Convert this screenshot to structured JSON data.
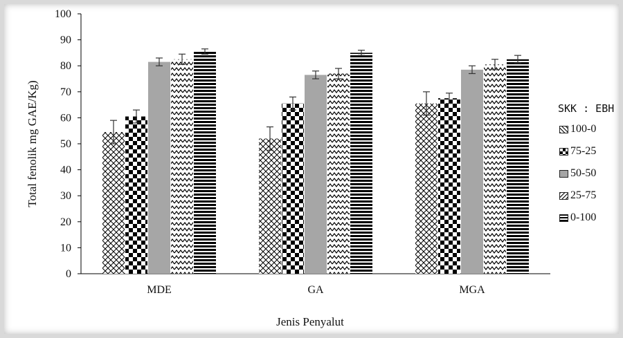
{
  "chart_data": {
    "type": "bar",
    "xlabel": "Jenis Penyalut",
    "ylabel": "Total fenolik mg GAE/Kg)",
    "ylim": [
      0,
      100
    ],
    "yticks": [
      0,
      10,
      20,
      30,
      40,
      50,
      60,
      70,
      80,
      90,
      100
    ],
    "categories": [
      "MDE",
      "GA",
      "MGA"
    ],
    "legend_title": "SKK : EBH",
    "legend_position": "right",
    "grid": false,
    "series": [
      {
        "name": "100-0",
        "pattern": "crosshatch",
        "values": [
          54.5,
          52.0,
          65.5
        ],
        "errors": [
          4.5,
          4.5,
          4.5
        ]
      },
      {
        "name": "75-25",
        "pattern": "checkerboard",
        "values": [
          60.5,
          65.5,
          67.5
        ],
        "errors": [
          2.5,
          2.5,
          2.0
        ]
      },
      {
        "name": "50-50",
        "pattern": "solid-gray",
        "values": [
          81.5,
          76.5,
          78.5
        ],
        "errors": [
          1.5,
          1.5,
          1.5
        ]
      },
      {
        "name": "25-75",
        "pattern": "zigzag",
        "values": [
          82.5,
          77.0,
          80.5
        ],
        "errors": [
          2.0,
          2.0,
          2.0
        ]
      },
      {
        "name": "0-100",
        "pattern": "horizontal-stripes",
        "values": [
          85.5,
          85.0,
          82.5
        ],
        "errors": [
          1.0,
          1.0,
          1.5
        ]
      }
    ]
  },
  "colors": {
    "axis": "#000000",
    "gray_bar": "#a6a6a6",
    "pattern_ink": "#000000"
  }
}
